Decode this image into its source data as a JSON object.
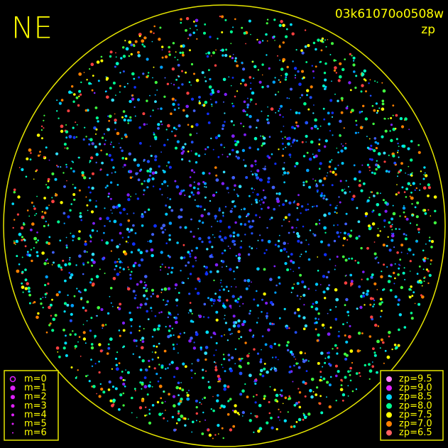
{
  "header": {
    "direction": "NE",
    "frame_id": "03k61070o0508w",
    "mode": "zp"
  },
  "m_legend": [
    {
      "label": "m=0",
      "size": 0
    },
    {
      "label": "m=1",
      "size": 1
    },
    {
      "label": "m=2",
      "size": 2
    },
    {
      "label": "m=3",
      "size": 3
    },
    {
      "label": "m=4",
      "size": 4
    },
    {
      "label": "m=5",
      "size": 5
    },
    {
      "label": "m=6",
      "size": 6
    }
  ],
  "zp_legend": [
    {
      "label": "zp=9.5",
      "color": "#ff80ff"
    },
    {
      "label": "zp=9.0",
      "color": "#e020ff"
    },
    {
      "label": "zp=8.5",
      "color": "#00d8ff"
    },
    {
      "label": "zp=8.0",
      "color": "#00ff90"
    },
    {
      "label": "zp=7.5",
      "color": "#ffff00"
    },
    {
      "label": "zp=7.0",
      "color": "#ff8000"
    },
    {
      "label": "zp=6.5",
      "color": "#ff6060"
    }
  ]
}
